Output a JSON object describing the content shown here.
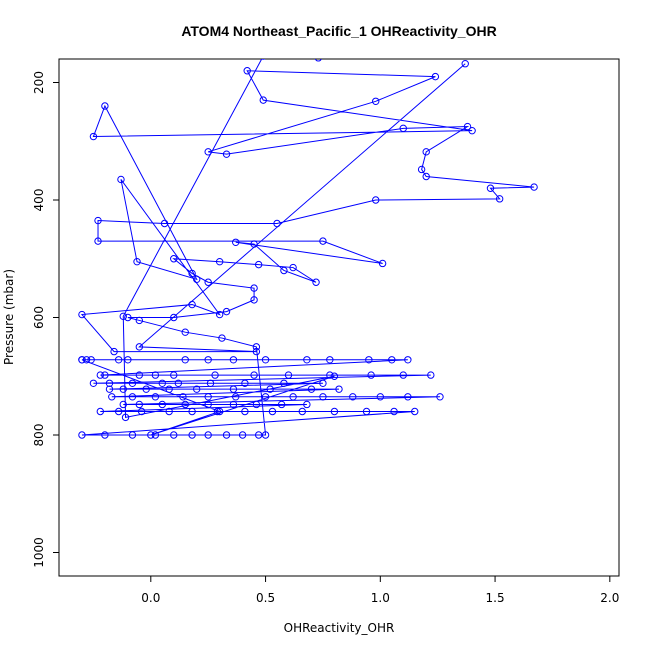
{
  "chart_data": {
    "type": "line",
    "title": "ATOM4 Northeast_Pacific_1 OHReactivity_OHR",
    "xlabel": "OHReactivity_OHR",
    "ylabel": "Pressure (mbar)",
    "xlim": [
      -0.4,
      2.04
    ],
    "ylim": [
      1040,
      160
    ],
    "y_reversed": true,
    "grid": false,
    "legend": "none",
    "x_ticks": [
      0.0,
      0.5,
      1.0,
      1.5,
      2.0
    ],
    "x_tick_labels": [
      "0.0",
      "0.5",
      "1.0",
      "1.5",
      "2.0"
    ],
    "y_ticks": [
      200,
      400,
      600,
      800,
      1000
    ],
    "y_tick_labels": [
      "200",
      "400",
      "600",
      "800",
      "1000"
    ],
    "colors": {
      "series": "#0000ff",
      "axes": "#000000",
      "background": "#ffffff"
    },
    "series": [
      {
        "marker": "open-circle",
        "x": [
          0.73,
          0.49,
          -0.12,
          -0.11,
          0.8,
          0.0,
          0.3,
          -0.3,
          -0.3,
          -0.28,
          -0.26,
          -0.14,
          -0.1,
          0.15,
          0.25,
          0.36,
          0.5,
          0.68,
          0.78,
          0.95,
          1.05,
          1.12,
          -0.22,
          -0.2,
          -0.05,
          0.02,
          0.1,
          0.28,
          0.45,
          0.6,
          0.78,
          0.96,
          1.1,
          1.22,
          -0.25,
          -0.18,
          -0.08,
          0.05,
          0.12,
          0.26,
          0.41,
          0.58,
          0.75,
          -0.18,
          -0.12,
          -0.02,
          0.08,
          0.2,
          0.36,
          0.52,
          0.7,
          0.82,
          -0.17,
          -0.08,
          0.02,
          0.14,
          0.25,
          0.37,
          0.5,
          0.62,
          0.75,
          0.88,
          1.0,
          1.12,
          1.26,
          -0.12,
          -0.05,
          0.05,
          0.15,
          0.25,
          0.36,
          0.46,
          0.57,
          0.68,
          -0.22,
          -0.14,
          -0.04,
          0.08,
          0.18,
          0.29,
          0.41,
          0.53,
          0.66,
          0.8,
          0.94,
          1.06,
          1.15,
          -0.3,
          -0.2,
          -0.08,
          0.02,
          0.1,
          0.18,
          0.25,
          0.33,
          0.4,
          0.47,
          0.5,
          0.46,
          0.31,
          0.15,
          -0.05,
          -0.1,
          0.1,
          0.33,
          0.45,
          0.45,
          0.25,
          0.18,
          0.1,
          0.3,
          0.47,
          0.62,
          0.72,
          0.58,
          0.45,
          0.37,
          1.01,
          0.75,
          -0.23,
          -0.23,
          0.06,
          0.55,
          0.98,
          1.52,
          1.48,
          1.67,
          1.2,
          1.18,
          1.2,
          1.38,
          1.1,
          0.33,
          0.25,
          0.98,
          1.24,
          0.42,
          0.49,
          1.4,
          -0.25,
          -0.2,
          0.2,
          -0.06,
          -0.13,
          0.3,
          0.18,
          -0.3,
          -0.16,
          0.46,
          -0.05,
          1.37
        ],
        "y": [
          158,
          155,
          598,
          770,
          700,
          800,
          760,
          672,
          672,
          672,
          672,
          672,
          672,
          672,
          672,
          672,
          672,
          672,
          672,
          672,
          672,
          672,
          698,
          698,
          698,
          698,
          698,
          698,
          698,
          698,
          698,
          698,
          698,
          698,
          712,
          712,
          712,
          712,
          712,
          712,
          712,
          712,
          712,
          722,
          722,
          722,
          722,
          722,
          722,
          722,
          722,
          722,
          735,
          735,
          735,
          735,
          735,
          735,
          735,
          735,
          735,
          735,
          735,
          735,
          735,
          748,
          748,
          748,
          748,
          748,
          748,
          748,
          748,
          748,
          760,
          760,
          760,
          760,
          760,
          760,
          760,
          760,
          760,
          760,
          760,
          760,
          760,
          800,
          800,
          800,
          800,
          800,
          800,
          800,
          800,
          800,
          800,
          800,
          650,
          635,
          625,
          605,
          600,
          600,
          590,
          570,
          550,
          540,
          525,
          500,
          505,
          510,
          515,
          540,
          520,
          475,
          472,
          508,
          470,
          470,
          435,
          440,
          440,
          400,
          398,
          380,
          378,
          360,
          348,
          318,
          275,
          278,
          322,
          318,
          232,
          190,
          180,
          230,
          282,
          292,
          240,
          535,
          505,
          365,
          595,
          578,
          595,
          658,
          658,
          650,
          168
        ]
      }
    ]
  }
}
